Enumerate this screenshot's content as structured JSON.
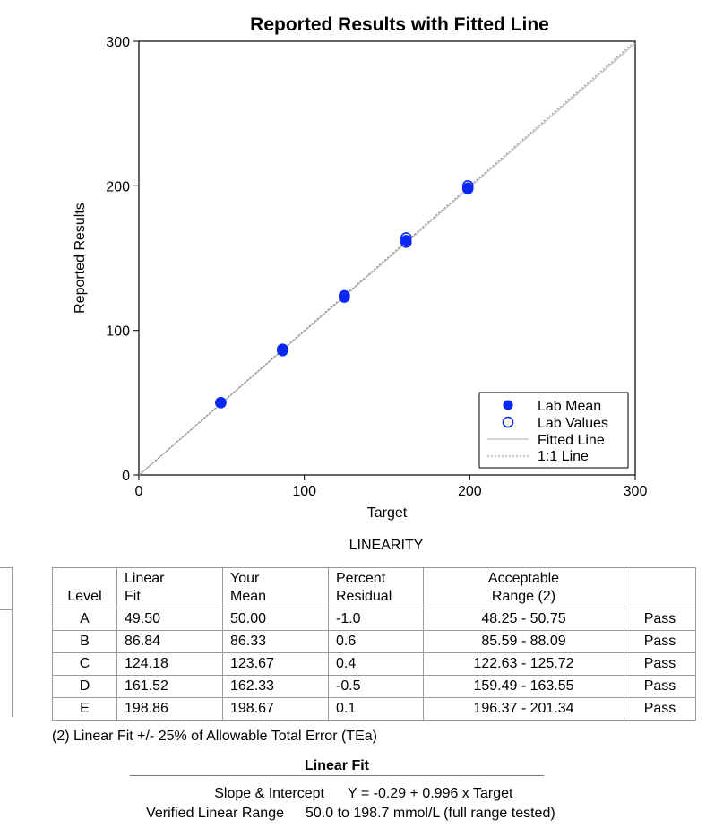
{
  "chart_data": {
    "type": "scatter",
    "title": "Reported Results with Fitted Line",
    "xlabel": "Target",
    "ylabel": "Reported Results",
    "xlim": [
      0,
      300
    ],
    "ylim": [
      0,
      300
    ],
    "xticks": [
      "0",
      "100",
      "200",
      "300"
    ],
    "yticks": [
      "0",
      "100",
      "200",
      "300"
    ],
    "grid": false,
    "legend_position": "bottom-right",
    "series": [
      {
        "name": "Lab Mean",
        "marker": "filled-circle",
        "color": "#0a28f0",
        "x": [
          49.5,
          86.84,
          124.18,
          161.52,
          198.86
        ],
        "y": [
          50.0,
          86.33,
          123.67,
          162.33,
          198.67
        ]
      },
      {
        "name": "Lab Values",
        "marker": "open-circle",
        "color": "#0a28f0",
        "x": [
          49.5,
          49.5,
          86.84,
          86.84,
          124.18,
          124.18,
          161.52,
          161.52,
          198.86,
          198.86
        ],
        "y": [
          50.0,
          50.0,
          86.0,
          87.0,
          123.0,
          124.0,
          161.0,
          164.0,
          198.0,
          200.0
        ]
      },
      {
        "name": "Fitted Line",
        "line": "solid",
        "color": "#b0b0b0",
        "slope": 0.996,
        "intercept": -0.29
      },
      {
        "name": "1:1 Line",
        "line": "dotted",
        "color": "#888888",
        "slope": 1,
        "intercept": 0
      }
    ]
  },
  "linearity": {
    "title": "LINEARITY",
    "headers": {
      "level": "Level",
      "fit_1": "Linear",
      "fit_2": "Fit",
      "mean_1": "Your",
      "mean_2": "Mean",
      "resid_1": "Percent",
      "resid_2": "Residual",
      "range_1": "Acceptable",
      "range_2": "Range (2)"
    },
    "rows": [
      {
        "level": "A",
        "fit": "49.50",
        "mean": "50.00",
        "residual": "-1.0",
        "range": "48.25 - 50.75",
        "result": "Pass"
      },
      {
        "level": "B",
        "fit": "86.84",
        "mean": "86.33",
        "residual": "0.6",
        "range": "85.59 - 88.09",
        "result": "Pass"
      },
      {
        "level": "C",
        "fit": "124.18",
        "mean": "123.67",
        "residual": "0.4",
        "range": "122.63 - 125.72",
        "result": "Pass"
      },
      {
        "level": "D",
        "fit": "161.52",
        "mean": "162.33",
        "residual": "-0.5",
        "range": "159.49 - 163.55",
        "result": "Pass"
      },
      {
        "level": "E",
        "fit": "198.86",
        "mean": "198.67",
        "residual": "0.1",
        "range": "196.37 - 201.34",
        "result": "Pass"
      }
    ],
    "footnote": "(2) Linear Fit +/- 25% of Allowable Total Error (TEa)"
  },
  "linear_fit": {
    "title": "Linear Fit",
    "slope_label": "Slope & Intercept",
    "slope_value": "Y = -0.29 + 0.996 x Target",
    "range_label": "Verified Linear Range",
    "range_value": "50.0 to 198.7 mmol/L (full range tested)"
  }
}
